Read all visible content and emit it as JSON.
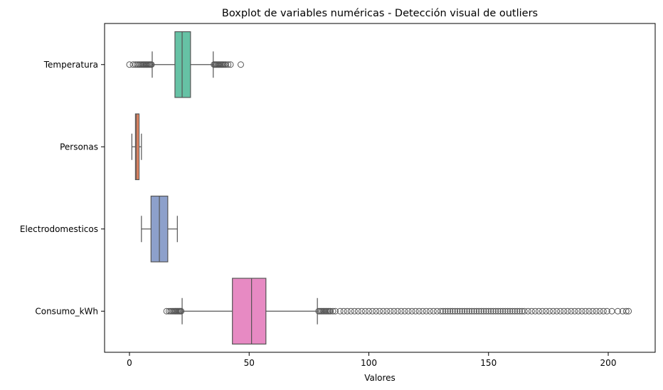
{
  "chart_data": {
    "type": "boxplot",
    "orientation": "horizontal",
    "title": "Boxplot de variables numéricas - Detección visual de outliers",
    "xlabel": "Valores",
    "ylabel": "",
    "xlim": [
      -10.5,
      219
    ],
    "xticks": [
      0,
      50,
      100,
      150,
      200
    ],
    "grid": false,
    "series": [
      {
        "name": "Temperatura",
        "color": "#66c2a5",
        "whisker_low": 9.5,
        "q1": 19,
        "median": 22,
        "q3": 25.5,
        "whisker_high": 35,
        "outliers_low": [
          0,
          1.5,
          2.5,
          3.2,
          3.8,
          4.3,
          4.8,
          5.3,
          5.7,
          6.1,
          6.5,
          6.9,
          7.3,
          7.7,
          8.1,
          8.5,
          8.9,
          9.2
        ],
        "outliers_high": [
          35.3,
          35.7,
          36.1,
          36.5,
          36.9,
          37.3,
          37.7,
          38.1,
          38.5,
          38.9,
          39.3,
          39.8,
          40.3,
          41.2,
          42.2,
          46.5
        ]
      },
      {
        "name": "Personas",
        "color": "#fc8d62",
        "whisker_low": 1,
        "q1": 2.5,
        "median": 3,
        "q3": 4,
        "whisker_high": 5,
        "outliers_low": [],
        "outliers_high": []
      },
      {
        "name": "Electrodomesticos",
        "color": "#8da0cb",
        "whisker_low": 5,
        "q1": 9,
        "median": 12.5,
        "q3": 16,
        "whisker_high": 20,
        "outliers_low": [],
        "outliers_high": []
      },
      {
        "name": "Consumo_kWh",
        "color": "#e78ac3",
        "whisker_low": 22,
        "q1": 43,
        "median": 51,
        "q3": 57,
        "whisker_high": 78.5,
        "outliers_low": [
          15.5,
          16.5,
          17.2,
          17.8,
          18.3,
          18.8,
          19.2,
          19.6,
          20,
          20.4,
          20.8,
          21.2,
          21.6
        ],
        "outliers_high": [
          79,
          79.5,
          80,
          80.5,
          81,
          81.5,
          82,
          82.5,
          83,
          83.5,
          84,
          85,
          86,
          88,
          89.5,
          91,
          92.5,
          94,
          95.5,
          97,
          98.5,
          100,
          101.5,
          103,
          104.5,
          106,
          107.5,
          109,
          110.5,
          112,
          113.5,
          115,
          116.5,
          118,
          119.5,
          121,
          122.5,
          124,
          125.5,
          127,
          128.5,
          130,
          131,
          132,
          133,
          134,
          135,
          136,
          137,
          138,
          139,
          140,
          141,
          142,
          143,
          144,
          145,
          146,
          147,
          148,
          149,
          150,
          151,
          152,
          153,
          154,
          155,
          156,
          157,
          158,
          159,
          160,
          161,
          162,
          163,
          164,
          165,
          166.5,
          168,
          169.5,
          171,
          172.5,
          174,
          175.5,
          177,
          178.5,
          180,
          181.5,
          183,
          184.5,
          186,
          187.5,
          189,
          190.5,
          192,
          193.5,
          195,
          196.5,
          198,
          199.5,
          201.5,
          204,
          206,
          207.5,
          208.5
        ]
      }
    ]
  }
}
